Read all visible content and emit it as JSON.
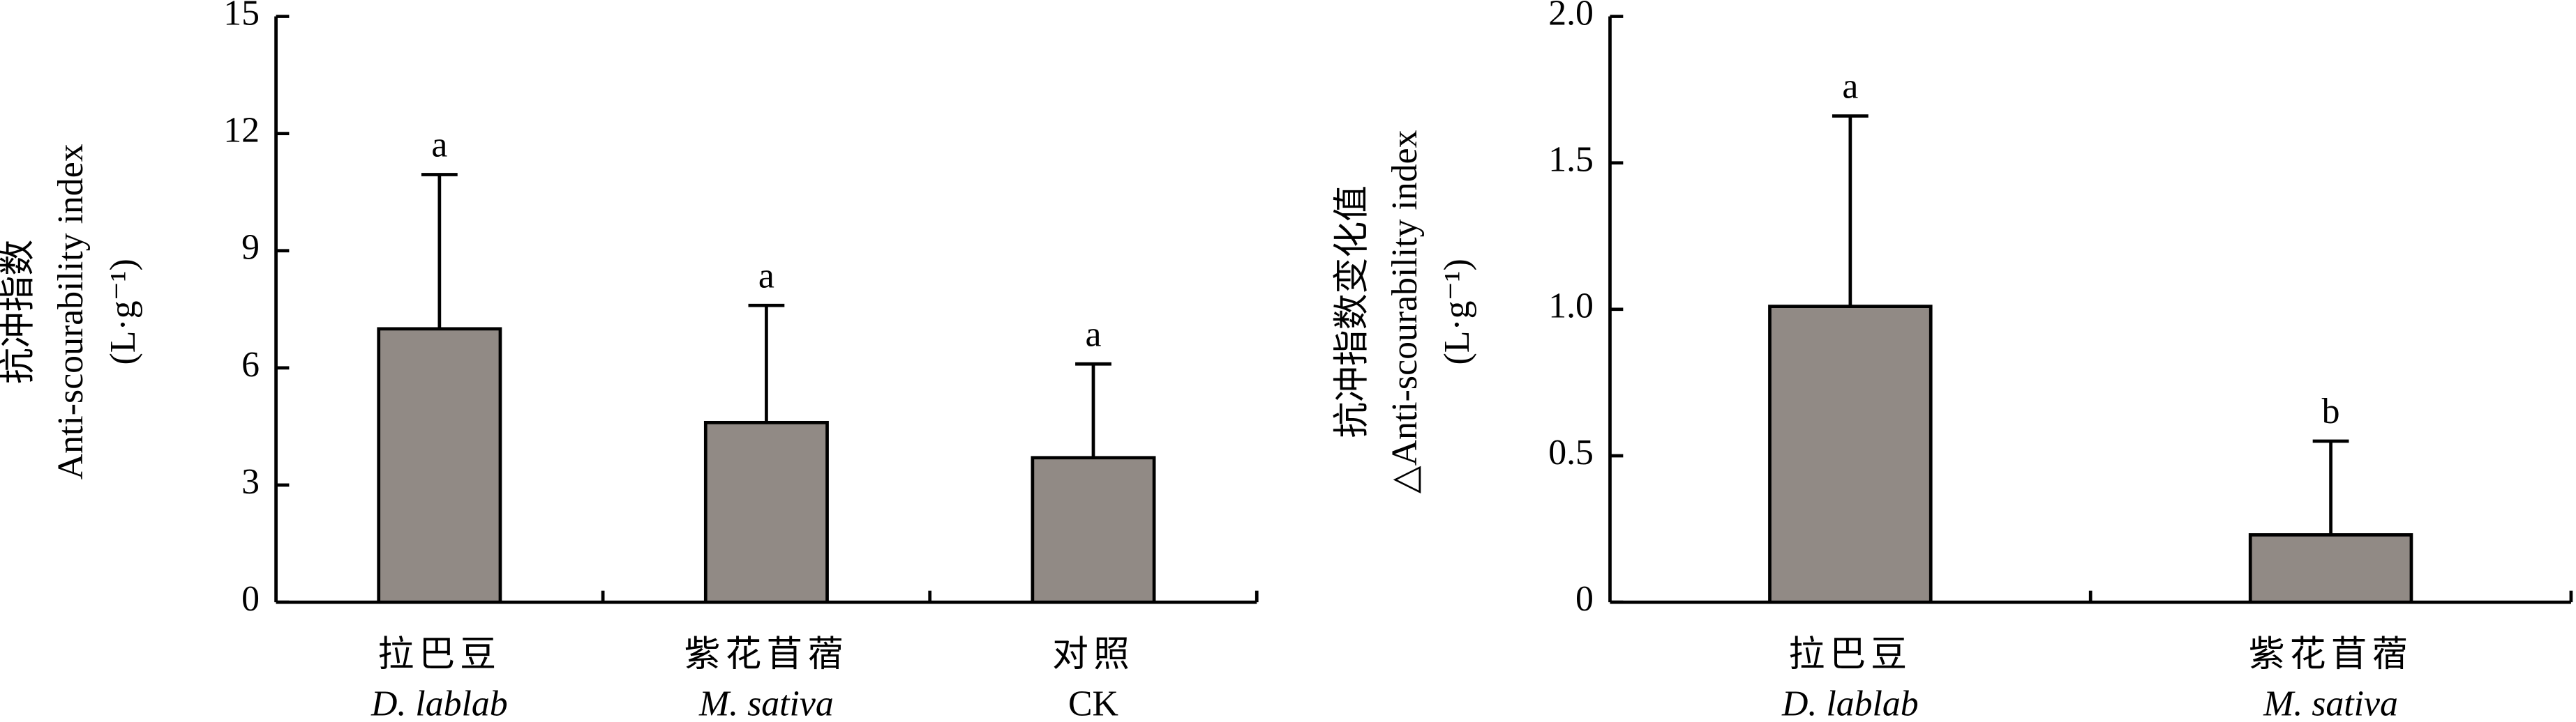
{
  "chart_data": [
    {
      "type": "bar",
      "ylabel": [
        "抗冲指数",
        "Anti-scourability index",
        "(L·g⁻¹)"
      ],
      "categories": [
        "拉巴豆",
        "紫花苜蓿",
        "对照"
      ],
      "categories_latin": [
        "D. lablab",
        "M. sativa",
        "CK"
      ],
      "latin_italic": [
        true,
        true,
        false
      ],
      "values": [
        7.0,
        4.6,
        3.7
      ],
      "errors": [
        3.95,
        3.0,
        2.4
      ],
      "letters": [
        "a",
        "a",
        "a"
      ],
      "color": "#918a85",
      "ylim": [
        0,
        15
      ],
      "yticks": [
        0,
        3,
        6,
        9,
        12,
        15
      ]
    },
    {
      "type": "bar",
      "ylabel": [
        "抗冲指数变化值",
        "△Anti-scourability index",
        "(L·g⁻¹)"
      ],
      "categories": [
        "拉巴豆",
        "紫花苜蓿"
      ],
      "categories_latin": [
        "D. lablab",
        "M. sativa"
      ],
      "latin_italic": [
        true,
        true
      ],
      "values": [
        1.01,
        0.23
      ],
      "errors": [
        0.65,
        0.32
      ],
      "letters": [
        "a",
        "b"
      ],
      "color": "#918a85",
      "ylim": [
        0,
        2.0
      ],
      "yticks": [
        0,
        0.5,
        {
          "value": 1.0,
          "label": "1.0"
        },
        1.5,
        {
          "value": 2.0,
          "label": "2.0"
        }
      ]
    }
  ]
}
